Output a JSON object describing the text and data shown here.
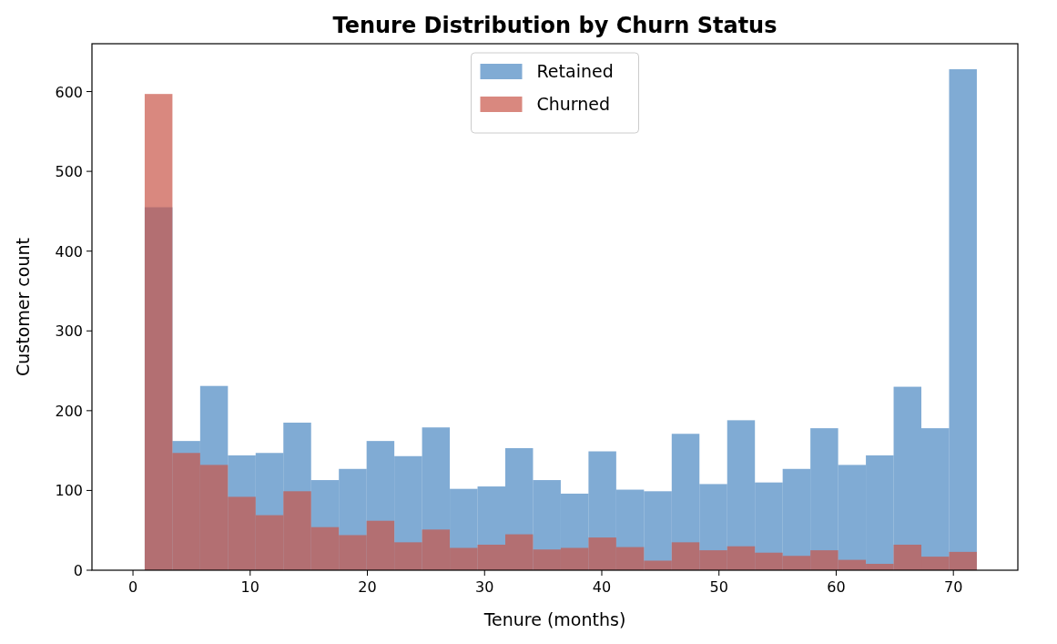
{
  "chart_data": {
    "type": "histogram",
    "title": "Tenure Distribution by Churn Status",
    "xlabel": "Tenure (months)",
    "ylabel": "Customer count",
    "bins": [
      1,
      3.3667,
      5.7333,
      8.1,
      10.4667,
      12.8333,
      15.2,
      17.5667,
      19.9333,
      22.3,
      24.6667,
      27.0333,
      29.4,
      31.7667,
      34.1333,
      36.5,
      38.8667,
      41.2333,
      43.6,
      45.9667,
      48.3333,
      50.7,
      53.0667,
      55.4333,
      57.8,
      60.1667,
      62.5333,
      64.9,
      67.2667,
      69.6333,
      72
    ],
    "series": [
      {
        "name": "Retained",
        "color": "#4a88c2",
        "values": [
          455,
          162,
          231,
          144,
          147,
          185,
          113,
          127,
          162,
          143,
          179,
          102,
          105,
          153,
          113,
          96,
          149,
          101,
          99,
          171,
          108,
          188,
          110,
          127,
          178,
          132,
          144,
          230,
          178,
          628
        ]
      },
      {
        "name": "Churned",
        "color": "#c95548",
        "values": [
          597,
          147,
          132,
          92,
          69,
          99,
          54,
          44,
          62,
          35,
          51,
          28,
          32,
          45,
          26,
          28,
          41,
          29,
          12,
          35,
          25,
          30,
          22,
          18,
          25,
          13,
          8,
          32,
          17,
          23
        ]
      }
    ],
    "xlim": [
      -3.5,
      75.5
    ],
    "xticks": [
      0,
      10,
      20,
      30,
      40,
      50,
      60,
      70
    ],
    "ylim": [
      0,
      660
    ],
    "yticks": [
      0,
      100,
      200,
      300,
      400,
      500,
      600
    ],
    "grid": false,
    "legend": "top"
  }
}
